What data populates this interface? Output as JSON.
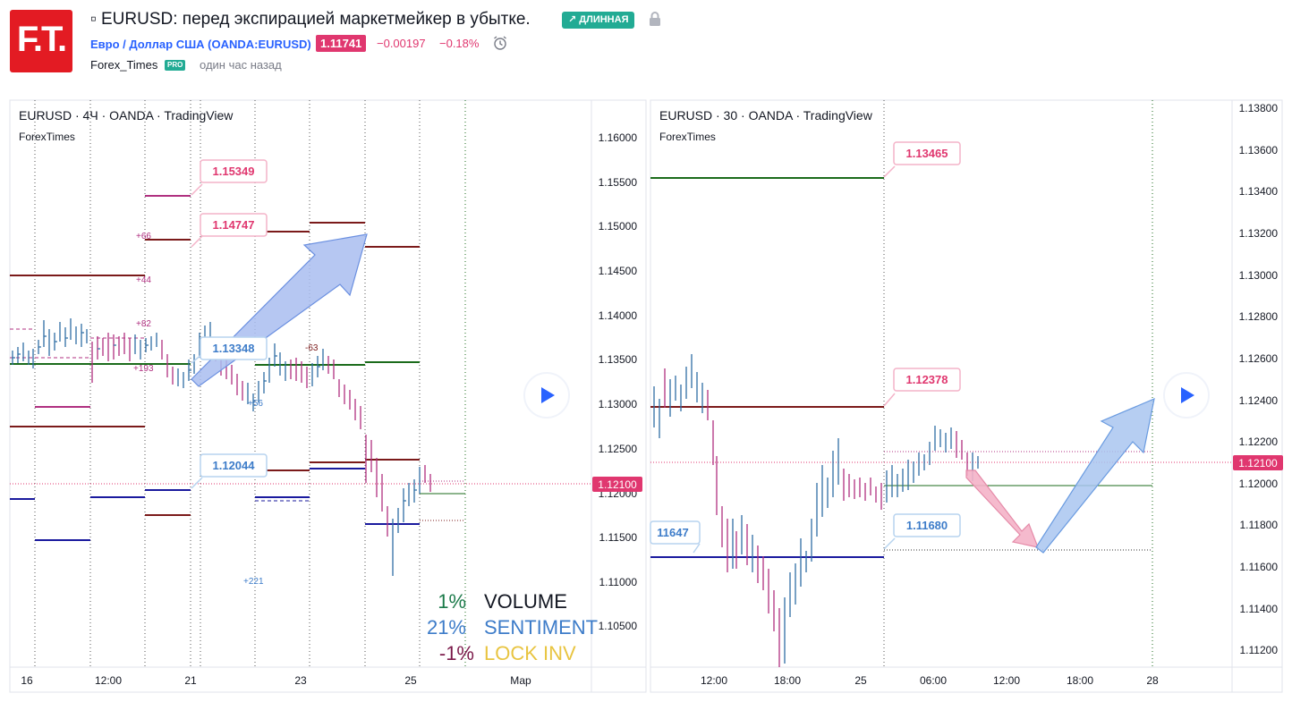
{
  "header": {
    "logo_text": "F.T.",
    "title": "▫ EURUSD: перед экспирацией маркетмейкер в убытке.",
    "badge": "↗ ДЛИННАЯ",
    "symbol": "Евро / Доллар США (OANDA:EURUSD)",
    "price": "1.11741",
    "change_abs": "−0.00197",
    "change_pct": "−0.18%",
    "author": "Forex_Times",
    "author_badge": "PRO",
    "time_ago": "один час назад",
    "icons": [
      "lock-icon",
      "alarm-clock-icon"
    ]
  },
  "colors": {
    "accent_blue": "#2962ff",
    "down_red": "#e0376f",
    "long_green": "#22ab94",
    "level_darkred": "#7b1a1a",
    "level_darkblue": "#1a1a9e",
    "level_green": "#1b6b1b"
  },
  "chart_left": {
    "header_line1": "EURUSD · 4Ч · OANDA · TradingView",
    "header_line2": "ForexTimes",
    "y_ticks": [
      "1.16000",
      "1.15500",
      "1.15000",
      "1.14500",
      "1.14000",
      "1.13500",
      "1.13000",
      "1.12500",
      "1.12000",
      "1.11500",
      "1.11000",
      "1.10500"
    ],
    "x_ticks": [
      "16",
      "12:00",
      "21",
      "23",
      "25",
      "Мар"
    ],
    "current_price": "1.12100",
    "level_labels": [
      "1.15349",
      "1.14747",
      "1.13348",
      "1.12044"
    ],
    "small_labels": [
      "+66",
      "+44",
      "+82",
      "+193",
      "-63",
      "+56",
      "+221"
    ],
    "stats": [
      {
        "value": "1%",
        "label": "VOLUME",
        "value_color": "#1b7a4a",
        "label_color": "#131722"
      },
      {
        "value": "21%",
        "label": "SENTIMENT",
        "value_color": "#3d7cc9",
        "label_color": "#3d7cc9"
      },
      {
        "value": "-1%",
        "label": "LOCK INV",
        "value_color": "#7b1a4a",
        "label_color": "#e8c440"
      }
    ]
  },
  "chart_right": {
    "header_line1": "EURUSD · 30 · OANDA · TradingView",
    "header_line2": "ForexTimes",
    "y_ticks": [
      "1.13800",
      "1.13600",
      "1.13400",
      "1.13200",
      "1.13000",
      "1.12800",
      "1.12600",
      "1.12400",
      "1.12200",
      "1.12000",
      "1.11800",
      "1.11600",
      "1.11400",
      "1.11200"
    ],
    "x_ticks": [
      "12:00",
      "18:00",
      "25",
      "06:00",
      "12:00",
      "18:00",
      "28"
    ],
    "current_price": "1.12100",
    "level_labels": [
      "1.13465",
      "1.12378",
      "1.11680",
      "11647"
    ]
  }
}
